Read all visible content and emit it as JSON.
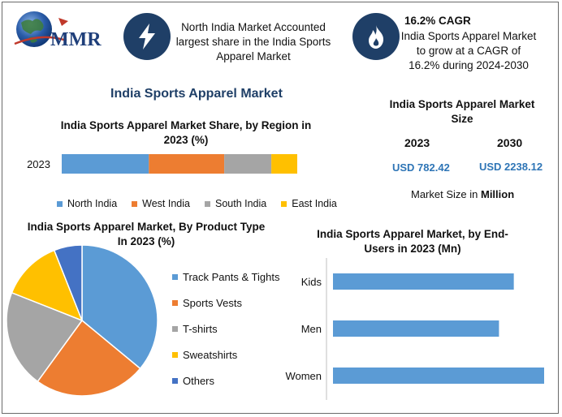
{
  "logo": {
    "text": "MMR"
  },
  "header": {
    "box1": {
      "icon": "lightning-bolt-icon",
      "text": "North India Market Accounted largest share in the India Sports Apparel Market"
    },
    "box2": {
      "icon": "flame-icon",
      "heading": "16.2% CAGR",
      "text": "India Sports Apparel Market to grow at a CAGR of 16.2% during 2024-2030"
    }
  },
  "main_title": "India Sports Apparel Market",
  "market_size": {
    "title": "India Sports Apparel Market Size",
    "years": [
      "2023",
      "2030"
    ],
    "values": [
      "USD 782.42",
      "USD 2238.12"
    ],
    "note_prefix": "Market Size in ",
    "note_unit": "Million"
  },
  "colors": {
    "blue": "#5b9bd5",
    "orange": "#ed7d31",
    "gray": "#a5a5a5",
    "yellow": "#ffc000",
    "darkblue": "#4472c4",
    "navy": "#1f3f67"
  },
  "chart_data": [
    {
      "type": "bar",
      "orientation": "horizontal",
      "stacked": true,
      "title": "India Sports Apparel Market Share, by Region in 2023 (%)",
      "categories": [
        "2023"
      ],
      "series": [
        {
          "name": "North India",
          "values": [
            37
          ],
          "color": "#5b9bd5"
        },
        {
          "name": "West India",
          "values": [
            32
          ],
          "color": "#ed7d31"
        },
        {
          "name": "South India",
          "values": [
            20
          ],
          "color": "#a5a5a5"
        },
        {
          "name": "East India",
          "values": [
            11
          ],
          "color": "#ffc000"
        }
      ],
      "legend": "bottom"
    },
    {
      "type": "pie",
      "title": "India Sports Apparel Market, By Product Type In 2023 (%)",
      "labels": [
        "Track Pants & Tights",
        "Sports Vests",
        "T-shirts",
        "Sweatshirts",
        "Others"
      ],
      "values": [
        36,
        24,
        21,
        13,
        6
      ],
      "colors": [
        "#5b9bd5",
        "#ed7d31",
        "#a5a5a5",
        "#ffc000",
        "#4472c4"
      ],
      "legend": "right"
    },
    {
      "type": "bar",
      "orientation": "horizontal",
      "title": "India Sports Apparel Market, by End-Users in 2023 (Mn)",
      "categories": [
        "Kids",
        "Men",
        "Women"
      ],
      "values": [
        183,
        168,
        225
      ],
      "xlim": [
        0,
        240
      ],
      "color": "#5b9bd5"
    }
  ]
}
